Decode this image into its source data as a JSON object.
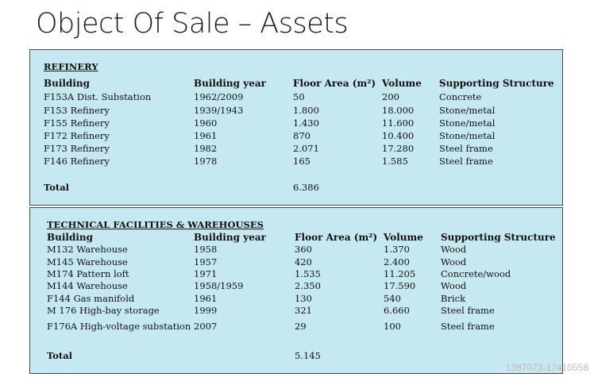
{
  "title": "Object Of Sale – Assets",
  "columns": [
    "Building",
    "Building year",
    "Floor Area (m²)",
    "Volume",
    "Supporting Structure"
  ],
  "sections": [
    {
      "heading": "REFINERY",
      "rows": [
        [
          "F153A Dist. Substation",
          "1962/2009",
          "50",
          "200",
          "Concrete"
        ],
        [
          "F153 Refinery",
          "1939/1943",
          "1.800",
          "18.000",
          "Stone/metal"
        ],
        [
          "F155 Refinery",
          "1960",
          "1.430",
          "11.600",
          "Stone/metal"
        ],
        [
          "F172 Refinery",
          "1961",
          "870",
          "10.400",
          "Stone/metal"
        ],
        [
          "F173 Refinery",
          "1982",
          "2.071",
          "17.280",
          "Steel frame"
        ],
        [
          "F146 Refinery",
          "1978",
          "165",
          "1.585",
          "Steel frame"
        ]
      ],
      "total_label": "Total",
      "total_area": "6.386"
    },
    {
      "heading": "TECHNICAL FACILITIES & WAREHOUSES",
      "rows": [
        [
          "M132 Warehouse",
          "1958",
          "360",
          "1.370",
          "Wood"
        ],
        [
          "M145 Warehouse",
          "1957",
          "420",
          "2.400",
          "Wood"
        ],
        [
          "M174 Pattern loft",
          "1971",
          "1.535",
          "11.205",
          "Concrete/wood"
        ],
        [
          "M144 Warehouse",
          "1958/1959",
          "2.350",
          "17.590",
          "Wood"
        ],
        [
          "F144 Gas manifold",
          "1961",
          "130",
          "540",
          "Brick"
        ],
        [
          "M 176 High-bay storage",
          "1999",
          "321",
          "6.660",
          "Steel frame"
        ],
        [
          "F176A High-voltage substation",
          "2007",
          "29",
          "100",
          "Steel frame"
        ]
      ],
      "total_label": "Total",
      "total_area": "5.145"
    }
  ],
  "watermark": "1387073-17410558",
  "colors": {
    "box_background": "#c6e8f0",
    "border": "#3c4a50"
  }
}
